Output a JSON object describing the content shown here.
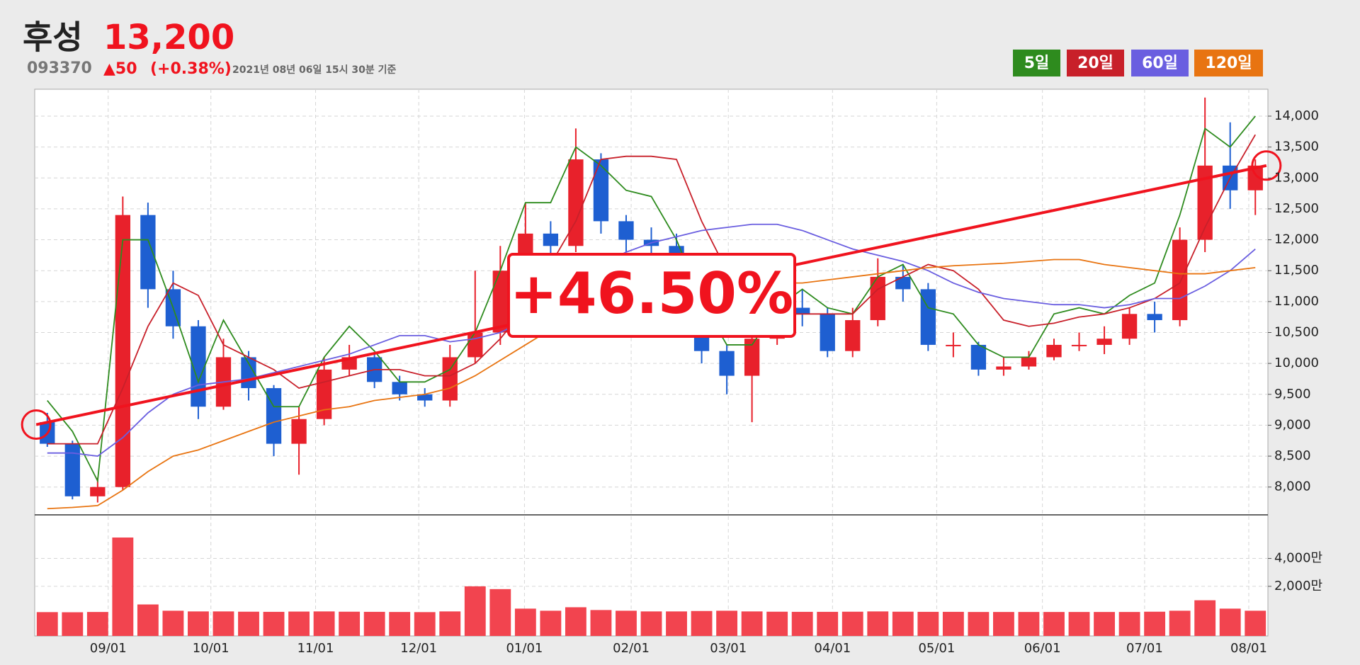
{
  "header": {
    "name": "후성",
    "price": "13,200",
    "code": "093370",
    "change": "▲50",
    "change_pct": "(+0.38%)",
    "timestamp": "2021년 08년 06일 15시 30분 기준"
  },
  "chart_data": [
    {
      "type": "candlestick",
      "xlim": [
        0,
        245
      ],
      "ylim": [
        7550,
        14435
      ],
      "yticks": [
        {
          "value": 8000,
          "label": "8,000"
        },
        {
          "value": 8500,
          "label": "8,500"
        },
        {
          "value": 9000,
          "label": "9,000"
        },
        {
          "value": 9500,
          "label": "9,500"
        },
        {
          "value": 10000,
          "label": "10,000"
        },
        {
          "value": 10500,
          "label": "10,500"
        },
        {
          "value": 11000,
          "label": "11,000"
        },
        {
          "value": 11500,
          "label": "11,500"
        },
        {
          "value": 12000,
          "label": "12,000"
        },
        {
          "value": 12500,
          "label": "12,500"
        },
        {
          "value": 13000,
          "label": "13,000"
        },
        {
          "value": 13500,
          "label": "13,500"
        },
        {
          "value": 14000,
          "label": "14,000"
        }
      ],
      "grid": true,
      "up_color": "#e8212b",
      "down_color": "#1e5fd1",
      "x": [
        2.5,
        7.5,
        12.5,
        17.5,
        22.5,
        27.5,
        32.5,
        37.5,
        42.5,
        47.5,
        52.5,
        57.5,
        62.5,
        67.5,
        72.5,
        77.5,
        82.5,
        87.5,
        92.5,
        97.5,
        102.5,
        107.5,
        112.5,
        117.5,
        122.5,
        127.5,
        132.5,
        137.5,
        142.5,
        147.5,
        152.5,
        157.5,
        162.5,
        167.5,
        172.5,
        177.5,
        182.5,
        187.5,
        192.5,
        197.5,
        202.5,
        207.5,
        212.5,
        217.5,
        222.5,
        227.5,
        232.5,
        237.5,
        242.5
      ],
      "open": [
        9050,
        8700,
        7850,
        8000,
        12400,
        11200,
        10600,
        9300,
        10100,
        9600,
        8700,
        9100,
        9900,
        10100,
        9700,
        9500,
        9400,
        10100,
        10500,
        11500,
        12100,
        11900,
        13300,
        12300,
        12000,
        11900,
        11200,
        10200,
        9800,
        10400,
        10900,
        10800,
        10200,
        10700,
        11400,
        11200,
        10300,
        10300,
        9900,
        9950,
        10100,
        10300,
        10300,
        10400,
        10800,
        10700,
        12000,
        13200,
        12800
      ],
      "high": [
        9200,
        8750,
        8150,
        12700,
        12600,
        11500,
        10700,
        10400,
        10200,
        9650,
        9300,
        10100,
        10300,
        10150,
        9800,
        9600,
        10300,
        11500,
        11900,
        12600,
        12300,
        13800,
        13400,
        12400,
        12200,
        12100,
        11300,
        10300,
        10600,
        11100,
        11200,
        10900,
        10900,
        11700,
        11600,
        11300,
        10500,
        10350,
        10100,
        10200,
        10400,
        10500,
        10600,
        10900,
        11000,
        12200,
        14300,
        13900,
        13300
      ],
      "low": [
        8650,
        7800,
        7750,
        7950,
        10900,
        10400,
        9100,
        9250,
        9400,
        8500,
        8200,
        9000,
        9800,
        9600,
        9400,
        9300,
        9300,
        10000,
        10300,
        11300,
        11700,
        11800,
        12100,
        11800,
        11700,
        11000,
        10000,
        9500,
        9050,
        10300,
        10600,
        10100,
        10100,
        10600,
        11000,
        10200,
        10100,
        9800,
        9800,
        9900,
        10050,
        10200,
        10150,
        10300,
        10500,
        10600,
        11800,
        12500,
        12400
      ],
      "close": [
        8700,
        7850,
        8000,
        12400,
        11200,
        10600,
        9300,
        10100,
        9600,
        8700,
        9100,
        9900,
        10100,
        9700,
        9500,
        9400,
        10100,
        10500,
        11500,
        12100,
        11900,
        13300,
        12300,
        12000,
        11900,
        11200,
        10200,
        9800,
        10400,
        10900,
        10800,
        10200,
        10700,
        11400,
        11200,
        10300,
        10300,
        9900,
        9950,
        10100,
        10300,
        10300,
        10400,
        10800,
        10700,
        12000,
        13200,
        12800,
        13200
      ],
      "series": [
        {
          "name": "5일",
          "color": "#2e8b1e",
          "values": [
            9400,
            8900,
            8100,
            12000,
            12000,
            10900,
            9700,
            10700,
            10000,
            9300,
            9300,
            10100,
            10600,
            10200,
            9700,
            9700,
            9900,
            10500,
            11500,
            12600,
            12600,
            13500,
            13200,
            12800,
            12700,
            12000,
            11000,
            10300,
            10300,
            10900,
            11200,
            10900,
            10800,
            11400,
            11600,
            10900,
            10800,
            10300,
            10100,
            10100,
            10800,
            10900,
            10800,
            11100,
            11300,
            12400,
            13800,
            13500,
            14000
          ]
        },
        {
          "name": "20일",
          "color": "#c8202a",
          "values": [
            8700,
            8700,
            8700,
            9600,
            10600,
            11300,
            11100,
            10300,
            10100,
            9900,
            9600,
            9700,
            9800,
            9900,
            9900,
            9800,
            9800,
            10000,
            10400,
            10900,
            11600,
            12300,
            13300,
            13350,
            13350,
            13300,
            12300,
            11500,
            11000,
            10800,
            10800,
            10800,
            10800,
            11200,
            11400,
            11600,
            11500,
            11200,
            10700,
            10600,
            10650,
            10750,
            10800,
            10900,
            11050,
            11300,
            12200,
            13000,
            13700
          ]
        },
        {
          "name": "60일",
          "color": "#6a5ee0",
          "values": [
            8550,
            8550,
            8500,
            8800,
            9200,
            9500,
            9650,
            9700,
            9750,
            9850,
            9950,
            10050,
            10150,
            10300,
            10450,
            10450,
            10350,
            10400,
            10500,
            10700,
            11000,
            11300,
            11600,
            11800,
            11950,
            12050,
            12150,
            12200,
            12250,
            12250,
            12150,
            12000,
            11850,
            11750,
            11650,
            11500,
            11300,
            11150,
            11050,
            11000,
            10950,
            10950,
            10900,
            10950,
            11050,
            11050,
            11250,
            11500,
            11850
          ]
        },
        {
          "name": "120일",
          "color": "#e87411",
          "values": [
            7650,
            7670,
            7700,
            7950,
            8250,
            8500,
            8600,
            8750,
            8900,
            9050,
            9150,
            9250,
            9300,
            9400,
            9450,
            9500,
            9600,
            9800,
            10050,
            10300,
            10550,
            10800,
            10950,
            11050,
            11100,
            11150,
            11200,
            11250,
            11250,
            11300,
            11300,
            11350,
            11400,
            11450,
            11500,
            11550,
            11580,
            11600,
            11620,
            11650,
            11680,
            11680,
            11600,
            11550,
            11500,
            11450,
            11450,
            11500,
            11550
          ]
        }
      ],
      "trend": {
        "color": "#f0131e",
        "x": [
          0.3,
          244.7
        ],
        "values": [
          9010,
          13200
        ],
        "label": "+46.50%"
      }
    },
    {
      "type": "bar",
      "xlim": [
        0,
        245
      ],
      "ylim": [
        -1560,
        7125
      ],
      "color": "#f2444f",
      "yticks": [
        {
          "value": 2000,
          "label": "2,000만"
        },
        {
          "value": 4000,
          "label": "4,000만"
        }
      ],
      "xticks": [
        {
          "value": 14.6,
          "label": "09/01"
        },
        {
          "value": 35.0,
          "label": "10/01"
        },
        {
          "value": 55.8,
          "label": "11/01"
        },
        {
          "value": 76.3,
          "label": "12/01"
        },
        {
          "value": 97.3,
          "label": "01/01"
        },
        {
          "value": 118.5,
          "label": "02/01"
        },
        {
          "value": 137.8,
          "label": "03/01"
        },
        {
          "value": 158.5,
          "label": "04/01"
        },
        {
          "value": 179.2,
          "label": "05/01"
        },
        {
          "value": 200.2,
          "label": "06/01"
        },
        {
          "value": 220.5,
          "label": "07/01"
        },
        {
          "value": 241.2,
          "label": "08/01"
        }
      ],
      "x": [
        2.5,
        7.5,
        12.5,
        17.5,
        22.5,
        27.5,
        32.5,
        37.5,
        42.5,
        47.5,
        52.5,
        57.5,
        62.5,
        67.5,
        72.5,
        77.5,
        82.5,
        87.5,
        92.5,
        97.5,
        102.5,
        107.5,
        112.5,
        117.5,
        122.5,
        127.5,
        132.5,
        137.5,
        142.5,
        147.5,
        152.5,
        157.5,
        162.5,
        167.5,
        172.5,
        177.5,
        182.5,
        187.5,
        192.5,
        197.5,
        202.5,
        207.5,
        212.5,
        217.5,
        222.5,
        227.5,
        232.5,
        237.5,
        242.5
      ],
      "values": [
        150,
        140,
        160,
        5500,
        700,
        250,
        200,
        200,
        180,
        170,
        190,
        200,
        180,
        170,
        160,
        150,
        200,
        2000,
        1800,
        400,
        250,
        500,
        300,
        250,
        200,
        200,
        230,
        250,
        200,
        180,
        170,
        170,
        180,
        200,
        180,
        170,
        170,
        160,
        160,
        160,
        160,
        160,
        160,
        160,
        180,
        250,
        1000,
        400,
        250
      ]
    }
  ]
}
